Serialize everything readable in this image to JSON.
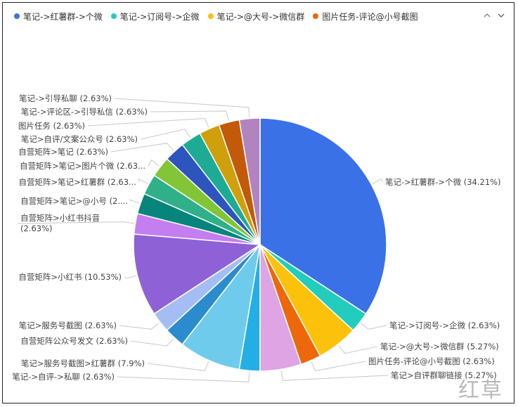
{
  "chart_data": {
    "type": "pie",
    "legend": {
      "placement": "top-left",
      "entries": [
        "笔记->红薯群->个微",
        "笔记->订阅号->企微",
        "笔记->@大号->微信群",
        "图片任务-评论@小号截图"
      ]
    },
    "slices": [
      {
        "name": "笔记->红薯群->个微",
        "value": 34.21,
        "label": "笔记->红薯群->个微 (34.21%)",
        "color": "#3b71e6"
      },
      {
        "name": "笔记->订阅号->企微",
        "value": 2.63,
        "label": "笔记->订阅号->企微 (2.63%)",
        "color": "#22cdbd"
      },
      {
        "name": "笔记->@大号->微信群",
        "value": 5.27,
        "label": "笔记->@大号->微信群 (5.27%)",
        "color": "#fcc20b"
      },
      {
        "name": "图片任务-评论@小号截图",
        "value": 2.63,
        "label": "图片任务-评论@小号截图 (2.63%)",
        "color": "#ed680b"
      },
      {
        "name": "笔记>自评群聊链接",
        "value": 5.27,
        "label": "笔记>自评群聊链接 (5.27%)",
        "color": "#dfa4e3"
      },
      {
        "name": "笔记->自评->私聊",
        "value": 2.63,
        "label": "笔记->自评->私聊 (2.63%)",
        "color": "#23aee6"
      },
      {
        "name": "笔记>服务号截图>红薯群",
        "value": 7.9,
        "label": "笔记>服务号截图>红薯群 (7.9%)",
        "color": "#6ecbec"
      },
      {
        "name": "自营矩阵公众号发文",
        "value": 2.63,
        "label": "自营矩阵公众号发文 (2.63%)",
        "color": "#2b8ccd"
      },
      {
        "name": "笔记>服务号截图",
        "value": 2.63,
        "label": "笔记>服务号截图 (2.63%)",
        "color": "#a4bdf4"
      },
      {
        "name": "自营矩阵>小红书",
        "value": 10.53,
        "label": "自营矩阵>小红书 (10.53%)",
        "color": "#8e62d6"
      },
      {
        "name": "自营矩阵>小红书抖音",
        "value": 2.63,
        "label_lines": [
          "自营矩阵>小红书抖音",
          "(2.63%)"
        ],
        "color": "#c37ef0"
      },
      {
        "name": "自营矩阵>笔记>@小号",
        "value": 2.63,
        "label": "自营矩阵>笔记>@小号 (2....",
        "color": "#07857c"
      },
      {
        "name": "自营矩阵>笔记>红薯群",
        "value": 2.63,
        "label": "自营矩阵>笔记>红薯群 (2.63...",
        "color": "#2fb089"
      },
      {
        "name": "自营矩阵>笔记>图片个微",
        "value": 2.63,
        "label": "自营矩阵>笔记>图片个微 (2.63...",
        "color": "#82c537"
      },
      {
        "name": "自营矩阵>笔记",
        "value": 2.63,
        "label": "自营矩阵>笔记 (2.63%)",
        "color": "#2d55be"
      },
      {
        "name": "笔记>自评/文案公众号",
        "value": 2.63,
        "label": "笔记>自评/文案公众号 (2.63%)",
        "color": "#1eab95"
      },
      {
        "name": "图片任务",
        "value": 2.63,
        "label": "图片任务 (2.63%)",
        "color": "#cfa00c"
      },
      {
        "name": "笔记->评论区->引导私信",
        "value": 2.63,
        "label": "笔记->评论区->引导私信 (2.63%)",
        "color": "#c25a0a"
      },
      {
        "name": "笔记->引导私聊",
        "value": 2.63,
        "label": "笔记->引导私聊 (2.63%)",
        "color": "#b184bf"
      }
    ]
  },
  "watermark": "红草"
}
